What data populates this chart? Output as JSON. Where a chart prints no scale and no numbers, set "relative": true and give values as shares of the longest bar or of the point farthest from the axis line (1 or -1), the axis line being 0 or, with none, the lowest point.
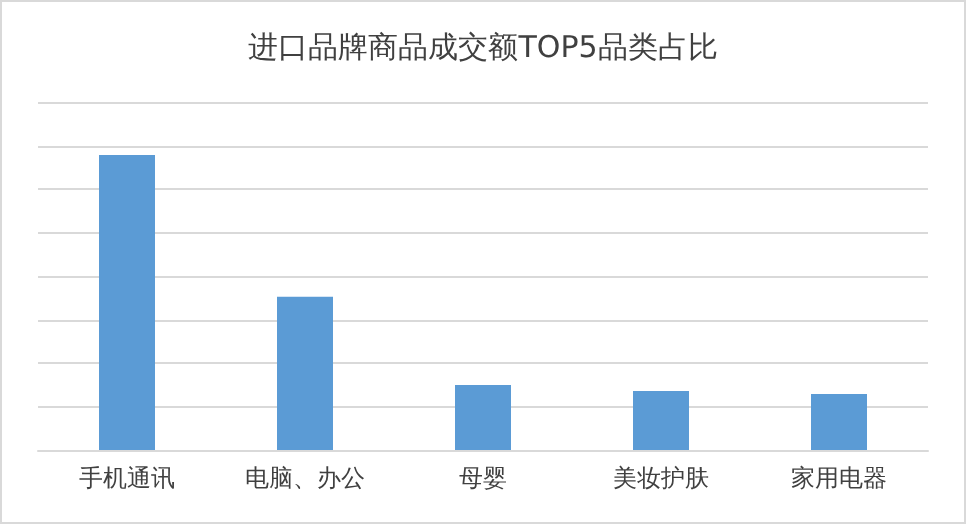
{
  "chart_data": {
    "type": "bar",
    "title": "进口品牌商品成交额TOP5品类占比",
    "relative": true,
    "grid": "y",
    "categories": [
      "手机通讯",
      "电脑、办公",
      "母婴",
      "美妆护肤",
      "家用电器"
    ],
    "series": [
      {
        "color": "#5b9bd5",
        "values": [
          1,
          0.52,
          0.22,
          0.2,
          0.19
        ]
      }
    ]
  }
}
